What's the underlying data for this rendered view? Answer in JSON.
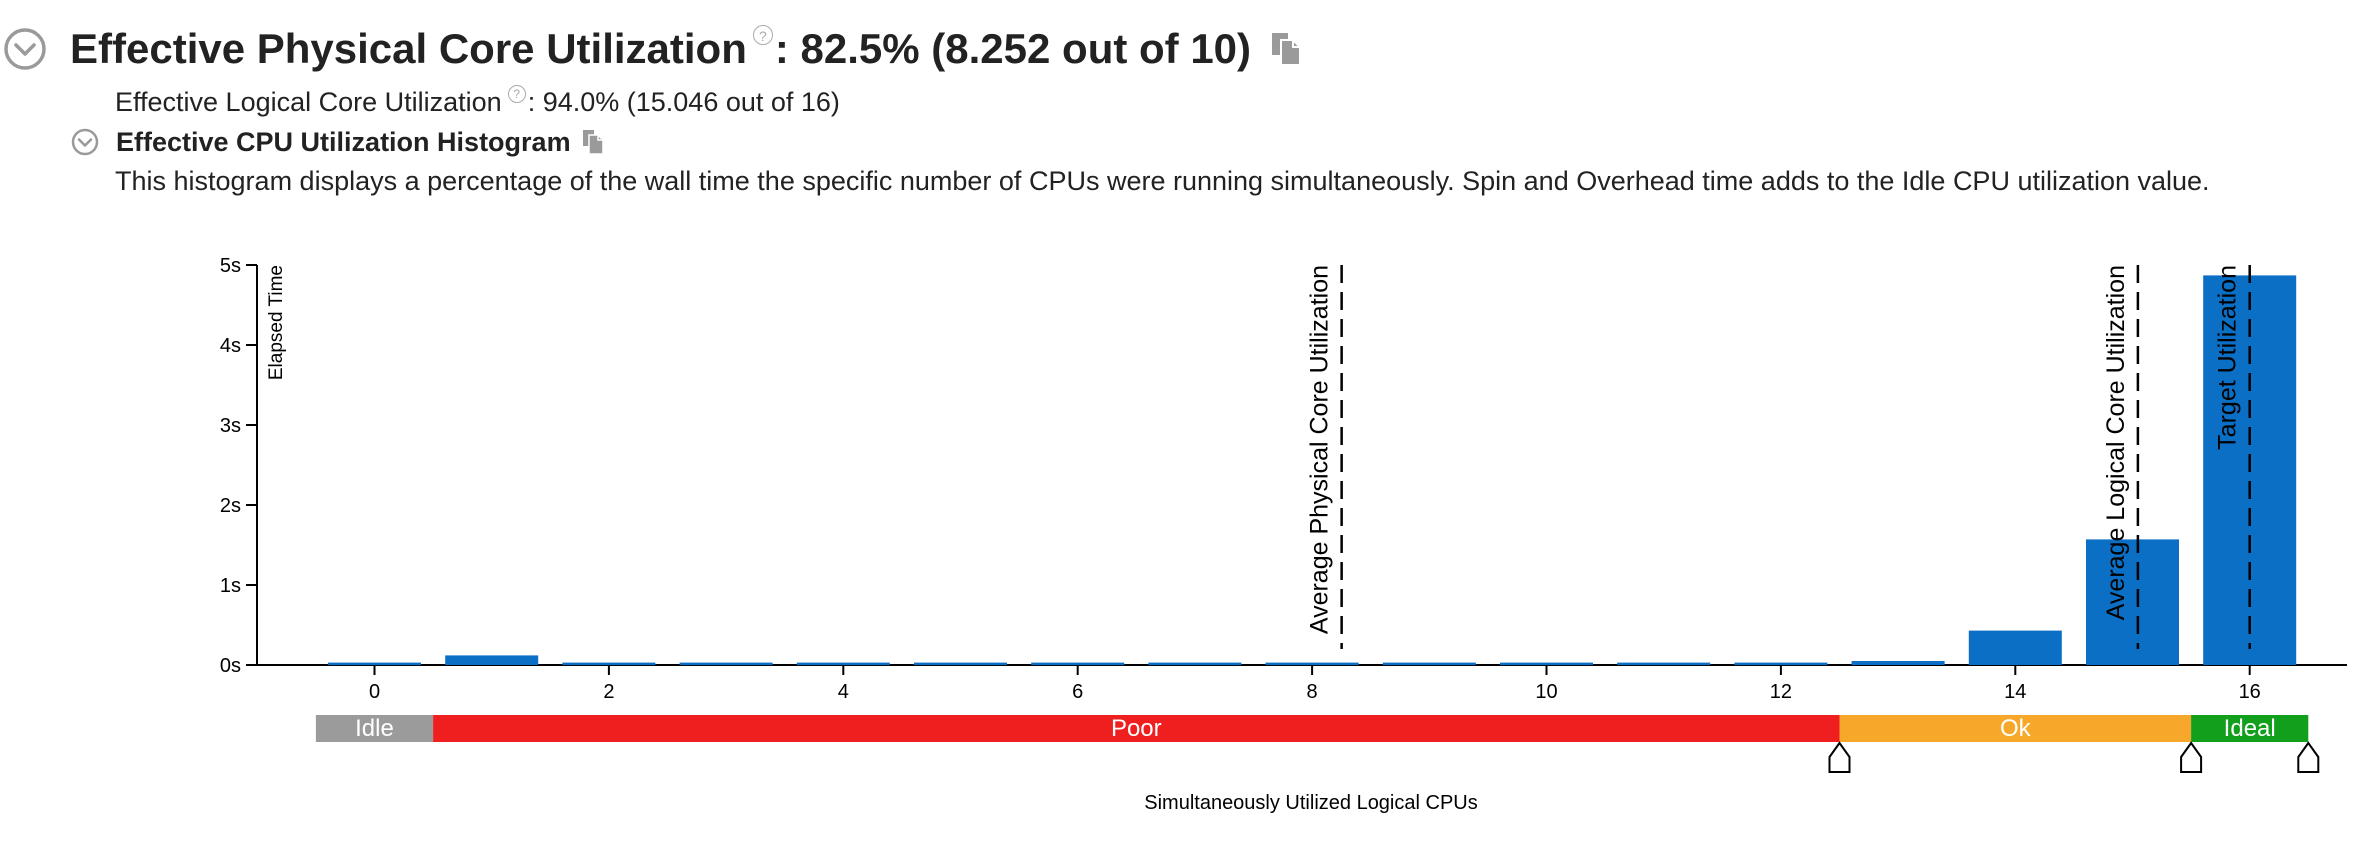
{
  "header": {
    "title": "Effective Physical Core Utilization",
    "title_value": ": 82.5% (8.252 out of 10)",
    "help_glyph": "?",
    "logical_label": "Effective Logical Core Utilization",
    "logical_value": ": 94.0% (15.046 out of 16)",
    "histogram_title": "Effective CPU Utilization Histogram",
    "description": "This histogram displays a percentage of the wall time the specific number of CPUs were running simultaneously. Spin and Overhead time adds to the Idle CPU utilization value."
  },
  "icons": {
    "collapse": "chevron-down-circle-icon",
    "copy": "copy-icon",
    "help": "help-icon",
    "threshold": "threshold-marker-icon"
  },
  "colors": {
    "bar": "#0a6fc5",
    "idle": "#9b9b9b",
    "poor": "#ef1f1f",
    "ok": "#f7a82b",
    "ideal": "#119f1c",
    "icon_gray": "#9a9a9a"
  },
  "chart_data": {
    "type": "bar",
    "ylabel": "Elapsed Time",
    "xlabel": "Simultaneously Utilized Logical CPUs",
    "ylim": [
      0,
      5
    ],
    "yticks": [
      "0s",
      "1s",
      "2s",
      "3s",
      "4s",
      "5s"
    ],
    "xticks": [
      "0",
      "2",
      "4",
      "6",
      "8",
      "10",
      "12",
      "14",
      "16"
    ],
    "categories": [
      "0",
      "1",
      "2",
      "3",
      "4",
      "5",
      "6",
      "7",
      "8",
      "9",
      "10",
      "11",
      "12",
      "13",
      "14",
      "15",
      "16"
    ],
    "values": [
      0.03,
      0.12,
      0.03,
      0.03,
      0.03,
      0.03,
      0.03,
      0.03,
      0.03,
      0.03,
      0.03,
      0.03,
      0.03,
      0.05,
      0.43,
      1.57,
      4.87
    ],
    "reference_lines": [
      {
        "label": "Average Physical Core Utilization",
        "x": 8.252
      },
      {
        "label": "Average Logical Core Utilization",
        "x": 15.046
      },
      {
        "label": "Target Utilization",
        "x": 16
      }
    ],
    "ranges": [
      {
        "label": "Idle",
        "from": -0.5,
        "to": 0.5
      },
      {
        "label": "Poor",
        "from": 0.5,
        "to": 12.5
      },
      {
        "label": "Ok",
        "from": 12.5,
        "to": 15.5
      },
      {
        "label": "Ideal",
        "from": 15.5,
        "to": 16.5
      }
    ],
    "threshold_markers": [
      12.5,
      15.5,
      16.5
    ]
  }
}
